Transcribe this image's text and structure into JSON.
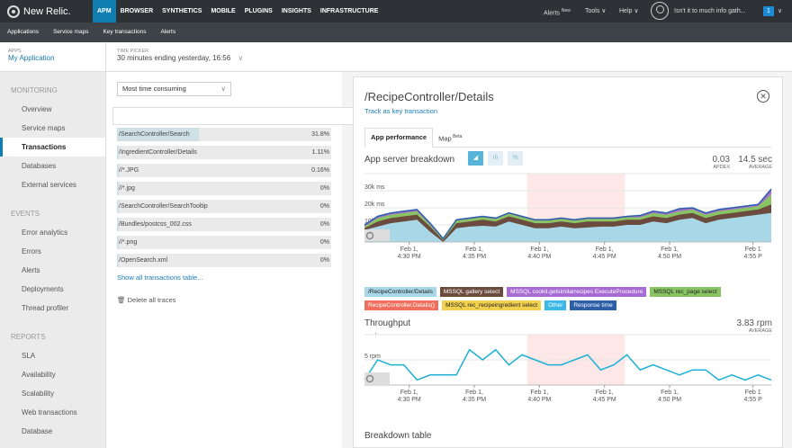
{
  "brand": "New Relic.",
  "mainnav": [
    {
      "label": "APM",
      "active": true
    },
    {
      "label": "BROWSER"
    },
    {
      "label": "SYNTHETICS"
    },
    {
      "label": "MOBILE"
    },
    {
      "label": "PLUGINS"
    },
    {
      "label": "INSIGHTS"
    },
    {
      "label": "INFRASTRUCTURE"
    }
  ],
  "rightnav": {
    "alerts": "Alerts",
    "alerts_badge": "New",
    "tools": "Tools",
    "help": "Help",
    "user": "Isn't it to much info gath...",
    "account_badge": "1"
  },
  "subnav": [
    "Applications",
    "Service maps",
    "Key transactions",
    "Alerts"
  ],
  "app": {
    "label": "APPS",
    "name": "My Application"
  },
  "time_picker": {
    "label": "TIME PICKER",
    "value": "30 minutes ending yesterday, 16:56"
  },
  "sidebar": [
    {
      "section": "MONITORING",
      "items": [
        {
          "label": "Overview"
        },
        {
          "label": "Service maps"
        },
        {
          "label": "Transactions",
          "active": true
        },
        {
          "label": "Databases"
        },
        {
          "label": "External services"
        }
      ]
    },
    {
      "section": "EVENTS",
      "items": [
        {
          "label": "Error analytics"
        },
        {
          "label": "Errors"
        },
        {
          "label": "Alerts"
        },
        {
          "label": "Deployments"
        },
        {
          "label": "Thread profiler"
        }
      ]
    },
    {
      "section": "REPORTS",
      "items": [
        {
          "label": "SLA"
        },
        {
          "label": "Availability"
        },
        {
          "label": "Scalability"
        },
        {
          "label": "Web transactions"
        },
        {
          "label": "Database"
        }
      ]
    }
  ],
  "sort_select": "Most time consuming",
  "transactions": [
    {
      "name": "/RecipeController/Details",
      "pct": "66.9%",
      "value": 66.9,
      "selected": true
    },
    {
      "name": "/SearchController/Search",
      "pct": "31.8%",
      "value": 31.8
    },
    {
      "name": "/IngredientController/Details",
      "pct": "1.11%",
      "value": 1.11
    },
    {
      "name": "//*.JPG",
      "pct": "0.16%",
      "value": 0.16
    },
    {
      "name": "//*.jpg",
      "pct": "0%",
      "value": 0
    },
    {
      "name": "/SearchController/SearchTooltip",
      "pct": "0%",
      "value": 0
    },
    {
      "name": "/Bundles/postcss_002.css",
      "pct": "0%",
      "value": 0
    },
    {
      "name": "//*.png",
      "pct": "0%",
      "value": 0
    },
    {
      "name": "/OpenSearch.xml",
      "pct": "0%",
      "value": 0
    }
  ],
  "show_all": "Show all transactions table...",
  "delete_all": "Delete all traces",
  "detail": {
    "title": "/RecipeController/Details",
    "track": "Track as key transaction",
    "tabs": [
      {
        "label": "App performance",
        "active": true
      },
      {
        "label": "Map",
        "sup": "Beta"
      }
    ],
    "breakdown_title": "App server breakdown",
    "apdex_value": "0.03",
    "apdex_label": "APDEX",
    "avg_value": "14.5 sec",
    "avg_label": "AVERAGE",
    "throughput_title": "Throughput",
    "tp_value": "3.83 rpm",
    "tp_label": "AVERAGE",
    "breakdown_table": "Breakdown table"
  },
  "chart_data": [
    {
      "type": "area",
      "title": "App server breakdown",
      "y_ticks": [
        "40k ms",
        "30k ms",
        "20k ms",
        "10k ms"
      ],
      "ylim": [
        0,
        40000
      ],
      "x_ticks": [
        "Feb 1,\n4:30 PM",
        "Feb 1,\n4:35 PM",
        "Feb 1,\n4:40 PM",
        "Feb 1,\n4:45 PM",
        "Feb 1,\n4:50 PM",
        "Feb 1\n4:55 P"
      ],
      "highlight_range": [
        0.4,
        0.64
      ],
      "x_points": 32,
      "series": [
        {
          "name": "/RecipeController/Details",
          "color": "#a8d8e8",
          "values": [
            7000,
            9000,
            11000,
            12000,
            13000,
            6000,
            0,
            8000,
            9000,
            9500,
            9000,
            12000,
            10000,
            8000,
            8000,
            9000,
            8000,
            8500,
            9000,
            9000,
            10000,
            10000,
            12000,
            11000,
            13000,
            14000,
            11000,
            13000,
            14000,
            15000,
            16000,
            17000
          ]
        },
        {
          "name": "MSSQL gallery select",
          "color": "#6b4b3e",
          "values": [
            8000,
            12000,
            14000,
            15000,
            16000,
            9000,
            1000,
            11000,
            12000,
            13000,
            12000,
            15000,
            13000,
            11000,
            11000,
            12000,
            11000,
            12000,
            12000,
            12000,
            13000,
            13000,
            15000,
            14000,
            16000,
            17000,
            14000,
            16000,
            17000,
            18000,
            19000,
            22000
          ]
        },
        {
          "name": "MSSQL rec_page select",
          "color": "#88c464",
          "values": [
            9000,
            14000,
            16000,
            17000,
            18000,
            10000,
            1500,
            12500,
            13500,
            14500,
            13500,
            16500,
            14500,
            12500,
            12500,
            13500,
            12500,
            13500,
            13500,
            13500,
            14500,
            14500,
            17000,
            16000,
            18000,
            19000,
            16000,
            18000,
            19000,
            20000,
            21000,
            28000
          ]
        },
        {
          "name": "MSSQL cookit.getsimilarrecipes ExecuteProcedure",
          "color": "#a86ad3",
          "values": [
            10000,
            15000,
            17000,
            18000,
            19000,
            11000,
            2000,
            13000,
            14000,
            15000,
            14000,
            17000,
            15000,
            13000,
            13000,
            14000,
            13000,
            14000,
            14000,
            14000,
            15000,
            15500,
            18000,
            17000,
            19500,
            20000,
            17000,
            19000,
            20000,
            21000,
            22000,
            31000
          ]
        }
      ]
    },
    {
      "type": "line",
      "title": "Throughput",
      "y_ticks": [
        "10 rpm",
        "5 rpm"
      ],
      "ylim": [
        0,
        10
      ],
      "x_ticks": [
        "Feb 1,\n4:30 PM",
        "Feb 1,\n4:35 PM",
        "Feb 1,\n4:40 PM",
        "Feb 1,\n4:45 PM",
        "Feb 1,\n4:50 PM",
        "Feb 1\n4:55 P"
      ],
      "highlight_range": [
        0.4,
        0.64
      ],
      "series": [
        {
          "name": "Throughput",
          "color": "#1bb0d4",
          "values": [
            1,
            5,
            4,
            4,
            1,
            2,
            2,
            2,
            7,
            5,
            7,
            4,
            6,
            5,
            4,
            4,
            5,
            6,
            3,
            4,
            6,
            3,
            4,
            3,
            2,
            3,
            3,
            1,
            2,
            1,
            2,
            1
          ]
        }
      ]
    }
  ],
  "legend": [
    {
      "label": "/RecipeController/Details",
      "color": "#a8d8e8"
    },
    {
      "label": "MSSQL gallery select",
      "color": "#6b4b3e",
      "text": "#fff"
    },
    {
      "label": "MSSQL cookit.getsimilarrecipes ExecuteProcedure",
      "color": "#a86ad3",
      "text": "#fff"
    },
    {
      "label": "MSSQL rec_page select",
      "color": "#88c464"
    },
    {
      "label": "RecipeController.Details()",
      "color": "#ef6f5c",
      "text": "#fff"
    },
    {
      "label": "MSSQL rec_recipeingredient select",
      "color": "#f2d14e"
    },
    {
      "label": "Other",
      "color": "#3bb8e8",
      "text": "#fff"
    },
    {
      "label": "Response time",
      "color": "#2d5fa8",
      "text": "#fff"
    }
  ]
}
